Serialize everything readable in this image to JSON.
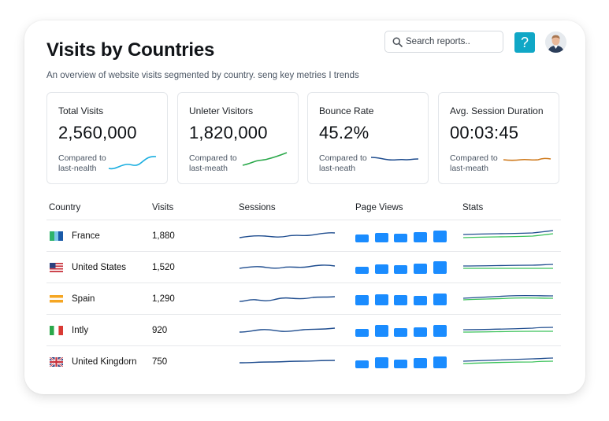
{
  "page": {
    "title": "Visits by Countries",
    "subtitle": "An overview of website visits segmented by country. seng key metries I trends"
  },
  "search": {
    "placeholder": "Search reports.."
  },
  "help": {
    "label": "?"
  },
  "kpis": [
    {
      "label": "Total Visits",
      "value": "2,560,000",
      "compare_1": "Compared to",
      "compare_2": "last-nealth",
      "color": "#19aee0"
    },
    {
      "label": "Unleter Visitors",
      "value": "1,820,000",
      "compare_1": "Compared to",
      "compare_2": "last-meath",
      "color": "#2aa84a"
    },
    {
      "label": "Bounce Rate",
      "value": "45.2%",
      "compare_1": "Compared to",
      "compare_2": "last-neath",
      "color": "#1f4d8f"
    },
    {
      "label": "Avg. Session Duration",
      "value": "00:03:45",
      "compare_1": "Compared to",
      "compare_2": "last-meath",
      "color": "#cf7a1c"
    }
  ],
  "table": {
    "headers": [
      "Country",
      "Visits",
      "Sessions",
      "Page Views",
      "Stats"
    ],
    "rows": [
      {
        "country": "France",
        "visits": "1,880",
        "flag": "france-flag"
      },
      {
        "country": "United States",
        "visits": "1,520",
        "flag": "usa-flag"
      },
      {
        "country": "Spain",
        "visits": "1,290",
        "flag": "spain-flag"
      },
      {
        "country": "Intly",
        "visits": "920",
        "flag": "italy-flag"
      },
      {
        "country": "United Kingdorn",
        "visits": "750",
        "flag": "uk-flag"
      }
    ]
  },
  "colors": {
    "accent": "#10a7c6",
    "bar": "#1a8cff",
    "line_blue": "#1f4d8f",
    "line_green": "#3bc25a"
  }
}
